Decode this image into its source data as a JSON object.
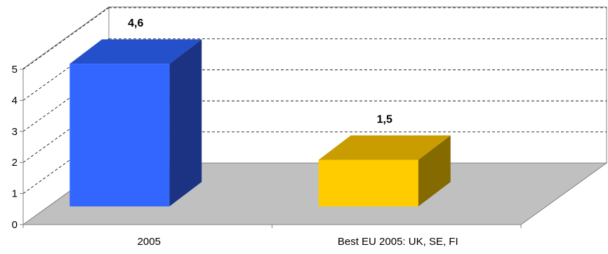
{
  "chart_data": {
    "type": "bar",
    "categories": [
      "2005",
      "Best EU 2005: UK, SE, FI"
    ],
    "values": [
      4.6,
      1.5
    ],
    "data_labels": [
      "4,6",
      "1,5"
    ],
    "ylim": [
      0,
      5
    ],
    "yticks": [
      "0",
      "1",
      "2",
      "3",
      "4",
      "5"
    ],
    "title": "",
    "xlabel": "",
    "ylabel": "",
    "three_d": true,
    "grid": "dashed horizontal",
    "colors": {
      "bars": [
        {
          "front": "#3366ff",
          "top": "#2450cc",
          "side": "#1b3382"
        },
        {
          "front": "#ffcc00",
          "top": "#c99d00",
          "side": "#856a00"
        }
      ],
      "floor": "#c0c0c0",
      "axis": "#808080",
      "grid": "#000000"
    }
  }
}
